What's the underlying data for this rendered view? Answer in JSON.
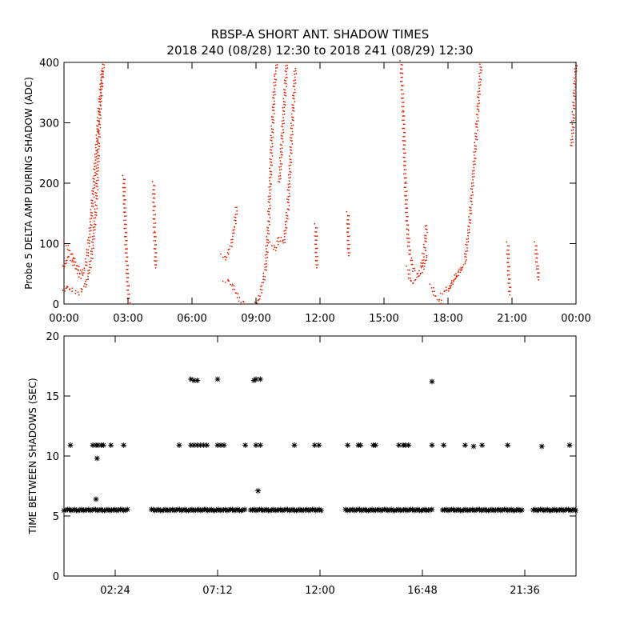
{
  "title": "RBSP-A SHORT ANT. SHADOW TIMES",
  "subtitle": "2018 240 (08/28) 12:30 to 2018 241 (08/29) 12:30",
  "colors": {
    "top_points": "#dd2200",
    "bottom_points": "#000000",
    "axes": "#000000",
    "background": "#ffffff"
  },
  "chart_data": [
    {
      "type": "scatter",
      "title": "RBSP-A SHORT ANT. SHADOW TIMES",
      "subtitle": "2018 240 (08/28) 12:30 to 2018 241 (08/29) 12:30",
      "xlabel": "",
      "ylabel": "Probe 5 DELTA AMP DURING SHADOW (ADC)",
      "x_unit": "hours",
      "xlim": [
        0,
        24
      ],
      "ylim": [
        0,
        400
      ],
      "x_ticks": [
        0,
        3,
        6,
        9,
        12,
        15,
        18,
        21,
        24
      ],
      "x_tick_labels": [
        "00:00",
        "03:00",
        "06:00",
        "09:00",
        "12:00",
        "15:00",
        "18:00",
        "21:00",
        "00:00"
      ],
      "y_ticks": [
        0,
        100,
        200,
        300,
        400
      ],
      "y_tick_labels": [
        "0",
        "100",
        "200",
        "300",
        "400"
      ],
      "grid": false,
      "marker": "dot",
      "color": "#dd2200",
      "segments": [
        [
          [
            0.0,
            20
          ],
          [
            0.15,
            30
          ],
          [
            0.3,
            25
          ],
          [
            0.5,
            20
          ],
          [
            0.7,
            18
          ],
          [
            0.9,
            25
          ],
          [
            1.1,
            40
          ],
          [
            1.3,
            80
          ],
          [
            1.5,
            160
          ],
          [
            1.7,
            330
          ],
          [
            1.85,
            400
          ]
        ],
        [
          [
            0.0,
            60
          ],
          [
            0.2,
            80
          ],
          [
            0.4,
            70
          ],
          [
            0.6,
            55
          ],
          [
            0.8,
            45
          ],
          [
            1.0,
            60
          ],
          [
            1.2,
            110
          ],
          [
            1.4,
            200
          ],
          [
            1.6,
            300
          ],
          [
            1.8,
            390
          ]
        ],
        [
          [
            0.05,
            100
          ],
          [
            0.25,
            90
          ],
          [
            0.45,
            75
          ],
          [
            0.65,
            60
          ],
          [
            0.85,
            50
          ]
        ],
        [
          [
            2.8,
            210
          ],
          [
            2.9,
            100
          ],
          [
            3.0,
            30
          ],
          [
            3.05,
            0
          ]
        ],
        [
          [
            4.2,
            200
          ],
          [
            4.25,
            120
          ],
          [
            4.3,
            60
          ]
        ],
        [
          [
            7.4,
            80
          ],
          [
            7.55,
            75
          ],
          [
            7.7,
            85
          ],
          [
            7.85,
            100
          ],
          [
            8.0,
            130
          ],
          [
            8.1,
            160
          ]
        ],
        [
          [
            7.5,
            35
          ],
          [
            7.7,
            40
          ],
          [
            7.9,
            30
          ],
          [
            8.1,
            15
          ],
          [
            8.3,
            5
          ],
          [
            8.5,
            0
          ]
        ],
        [
          [
            9.0,
            0
          ],
          [
            9.15,
            10
          ],
          [
            9.3,
            30
          ],
          [
            9.45,
            60
          ],
          [
            9.6,
            140
          ],
          [
            9.75,
            280
          ],
          [
            9.9,
            380
          ],
          [
            10.0,
            400
          ]
        ],
        [
          [
            9.7,
            100
          ],
          [
            9.9,
            90
          ],
          [
            10.1,
            110
          ],
          [
            10.3,
            100
          ],
          [
            10.5,
            160
          ],
          [
            10.7,
            300
          ],
          [
            10.85,
            390
          ]
        ],
        [
          [
            10.1,
            200
          ],
          [
            10.2,
            260
          ],
          [
            10.3,
            320
          ],
          [
            10.45,
            400
          ]
        ],
        [
          [
            11.8,
            130
          ],
          [
            11.85,
            60
          ]
        ],
        [
          [
            13.3,
            150
          ],
          [
            13.35,
            80
          ]
        ],
        [
          [
            15.8,
            400
          ],
          [
            15.9,
            320
          ],
          [
            16.0,
            200
          ],
          [
            16.1,
            120
          ],
          [
            16.25,
            75
          ],
          [
            16.4,
            55
          ],
          [
            16.55,
            50
          ],
          [
            16.75,
            60
          ],
          [
            16.9,
            90
          ],
          [
            17.0,
            130
          ]
        ],
        [
          [
            16.1,
            60
          ],
          [
            16.25,
            40
          ],
          [
            16.4,
            35
          ],
          [
            16.6,
            45
          ],
          [
            16.8,
            55
          ],
          [
            17.0,
            80
          ]
        ],
        [
          [
            17.2,
            30
          ],
          [
            17.4,
            15
          ],
          [
            17.6,
            5
          ],
          [
            17.8,
            0
          ]
        ],
        [
          [
            17.7,
            15
          ],
          [
            17.9,
            25
          ],
          [
            18.1,
            30
          ],
          [
            18.3,
            40
          ],
          [
            18.5,
            50
          ],
          [
            18.6,
            60
          ]
        ],
        [
          [
            18.0,
            20
          ],
          [
            18.2,
            35
          ],
          [
            18.4,
            50
          ],
          [
            18.6,
            55
          ],
          [
            18.8,
            70
          ],
          [
            19.0,
            130
          ],
          [
            19.2,
            220
          ],
          [
            19.4,
            320
          ],
          [
            19.55,
            400
          ]
        ],
        [
          [
            20.8,
            100
          ],
          [
            20.85,
            50
          ],
          [
            20.9,
            15
          ]
        ],
        [
          [
            22.1,
            100
          ],
          [
            22.2,
            60
          ],
          [
            22.25,
            40
          ]
        ],
        [
          [
            23.8,
            260
          ],
          [
            23.9,
            330
          ],
          [
            24.0,
            400
          ]
        ]
      ]
    },
    {
      "type": "scatter",
      "xlabel": "",
      "ylabel": "TIME BETWEEN SHADOWS (SEC)",
      "x_unit": "hours",
      "xlim": [
        0,
        24
      ],
      "ylim": [
        0,
        20
      ],
      "x_ticks": [
        2.4,
        7.2,
        12.0,
        16.8,
        21.6
      ],
      "x_tick_labels": [
        "02:24",
        "07:12",
        "12:00",
        "16:48",
        "21:36"
      ],
      "y_ticks": [
        0,
        5,
        10,
        15,
        20
      ],
      "y_tick_labels": [
        "0",
        "5",
        "10",
        "15",
        "20"
      ],
      "grid": false,
      "marker": "asterisk",
      "color": "#000000",
      "baseline_value": 5.5,
      "baseline_ranges": [
        [
          0.0,
          3.05
        ],
        [
          4.1,
          8.5
        ],
        [
          8.75,
          12.05
        ],
        [
          13.2,
          17.3
        ],
        [
          17.75,
          21.5
        ],
        [
          22.0,
          24.0
        ]
      ],
      "outliers": [
        [
          0.3,
          10.9
        ],
        [
          1.35,
          10.9
        ],
        [
          1.5,
          10.9
        ],
        [
          1.6,
          10.9
        ],
        [
          1.75,
          10.9
        ],
        [
          1.85,
          10.9
        ],
        [
          2.2,
          10.9
        ],
        [
          2.8,
          10.9
        ],
        [
          1.55,
          9.8
        ],
        [
          1.5,
          6.4
        ],
        [
          5.4,
          10.9
        ],
        [
          5.95,
          10.9
        ],
        [
          6.1,
          10.9
        ],
        [
          6.25,
          10.9
        ],
        [
          6.4,
          10.9
        ],
        [
          6.55,
          10.9
        ],
        [
          6.7,
          10.9
        ],
        [
          7.2,
          10.9
        ],
        [
          7.35,
          10.9
        ],
        [
          7.5,
          10.9
        ],
        [
          8.5,
          10.9
        ],
        [
          9.0,
          10.9
        ],
        [
          9.2,
          10.9
        ],
        [
          5.95,
          16.4
        ],
        [
          6.1,
          16.3
        ],
        [
          6.25,
          16.3
        ],
        [
          7.2,
          16.4
        ],
        [
          8.9,
          16.3
        ],
        [
          9.0,
          16.4
        ],
        [
          9.2,
          16.4
        ],
        [
          9.1,
          7.1
        ],
        [
          10.8,
          10.9
        ],
        [
          11.75,
          10.9
        ],
        [
          11.95,
          10.9
        ],
        [
          13.3,
          10.9
        ],
        [
          13.8,
          10.9
        ],
        [
          13.9,
          10.9
        ],
        [
          14.5,
          10.9
        ],
        [
          14.6,
          10.9
        ],
        [
          15.7,
          10.9
        ],
        [
          15.9,
          10.9
        ],
        [
          16.0,
          10.9
        ],
        [
          16.15,
          10.9
        ],
        [
          17.25,
          10.9
        ],
        [
          17.8,
          10.9
        ],
        [
          17.25,
          16.2
        ],
        [
          18.8,
          10.9
        ],
        [
          19.2,
          10.8
        ],
        [
          19.6,
          10.9
        ],
        [
          20.8,
          10.9
        ],
        [
          22.4,
          10.8
        ],
        [
          23.7,
          10.9
        ]
      ]
    }
  ]
}
